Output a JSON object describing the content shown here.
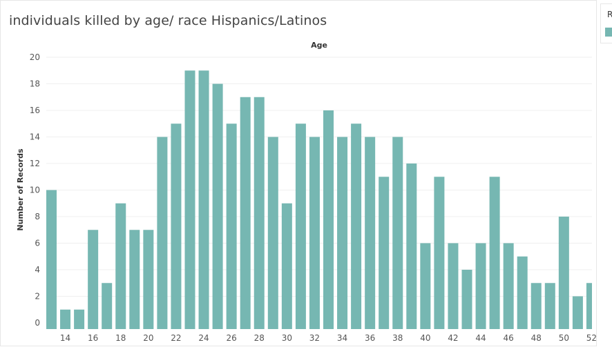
{
  "title": "individuals killed by age/ race Hispanics/Latinos",
  "legend": {
    "title": "R",
    "color": "#76b7b2"
  },
  "chart_data": {
    "type": "bar",
    "title": "individuals killed by age/ race Hispanics/Latinos",
    "xlabel": "Age",
    "ylabel": "Number of Records",
    "ylim": [
      0,
      20
    ],
    "yticks": [
      0,
      2,
      4,
      6,
      8,
      10,
      12,
      14,
      16,
      18,
      20
    ],
    "xtick_labels": [
      "14",
      "16",
      "18",
      "20",
      "22",
      "24",
      "26",
      "28",
      "30",
      "32",
      "34",
      "36",
      "38",
      "40",
      "42",
      "44",
      "46",
      "48",
      "50",
      "52"
    ],
    "categories": [
      13,
      14,
      15,
      16,
      17,
      18,
      19,
      20,
      21,
      22,
      23,
      24,
      25,
      26,
      27,
      28,
      29,
      30,
      31,
      32,
      33,
      34,
      35,
      36,
      37,
      38,
      39,
      40,
      41,
      42,
      43,
      44,
      45,
      46,
      47,
      48,
      49,
      50,
      51,
      52
    ],
    "values": [
      10,
      1,
      1,
      7,
      3,
      9,
      7,
      7,
      14,
      15,
      19,
      19,
      18,
      15,
      17,
      17,
      14,
      9,
      15,
      14,
      16,
      14,
      15,
      14,
      11,
      14,
      12,
      6,
      11,
      6,
      4,
      6,
      11,
      6,
      5,
      3,
      3,
      8,
      2,
      3
    ],
    "bar_color": "#76b7b2",
    "grid": true,
    "legend_position": "right"
  }
}
